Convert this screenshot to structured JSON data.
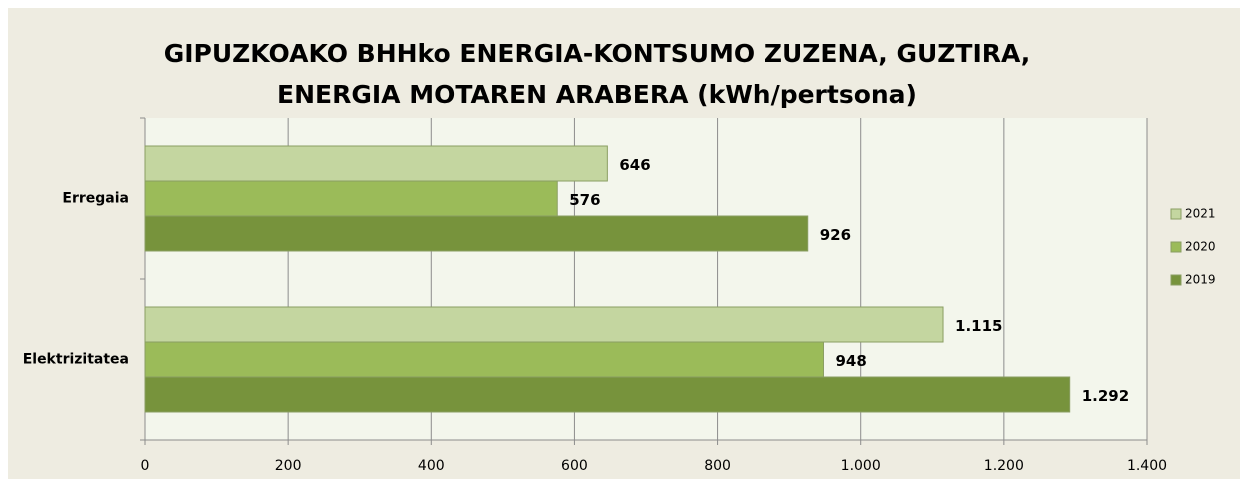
{
  "chart_data": {
    "type": "hbar",
    "title": [
      "GIPUZKOAKO BHHko ENERGIA-KONTSUMO ZUZENA, GUZTIRA,",
      "ENERGIA MOTAREN ARABERA (kWh/pertsona)"
    ],
    "categories": [
      "Erregaia",
      "Elektrizitatea"
    ],
    "series": [
      {
        "name": "2021",
        "color": "#c4d6a0",
        "values": [
          646,
          1115
        ],
        "value_labels": [
          "646",
          "1.115"
        ]
      },
      {
        "name": "2020",
        "color": "#9bbb59",
        "values": [
          576,
          948
        ],
        "value_labels": [
          "576",
          "948"
        ]
      },
      {
        "name": "2019",
        "color": "#77933c",
        "values": [
          926,
          1292
        ],
        "value_labels": [
          "926",
          "1.292"
        ]
      }
    ],
    "xlim": [
      0,
      1400
    ],
    "xticks": [
      0,
      200,
      400,
      600,
      800,
      {
        "value": 1000,
        "label": "1.000"
      },
      {
        "value": 1200,
        "label": "1.200"
      },
      {
        "value": 1400,
        "label": "1.400"
      }
    ],
    "grid": true
  }
}
